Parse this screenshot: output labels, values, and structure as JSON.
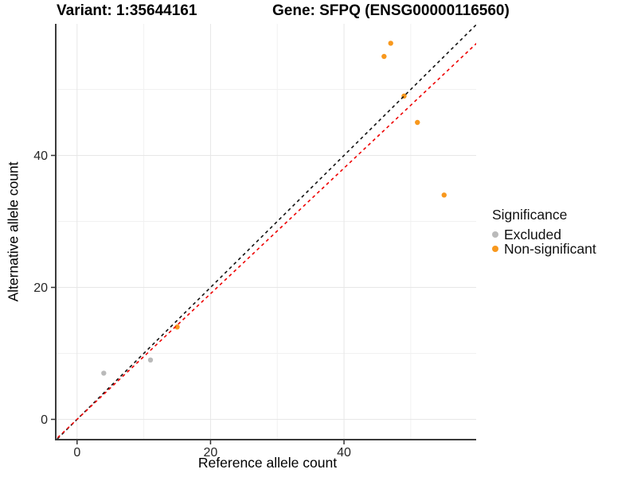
{
  "titles": {
    "variant": "Variant: 1:35644161",
    "gene": "Gene: SFPQ (ENSG00000116560)"
  },
  "axes": {
    "x_label": "Reference allele count",
    "y_label": "Alternative allele count",
    "x_ticks": [
      0,
      20,
      40
    ],
    "y_ticks": [
      0,
      20,
      40
    ],
    "x_minor_breaks": [
      10,
      30,
      50
    ],
    "y_minor_breaks": [
      10,
      30,
      50
    ]
  },
  "legend": {
    "title": "Significance",
    "items": [
      {
        "label": "Excluded",
        "color": "#BABABA"
      },
      {
        "label": "Non-significant",
        "color": "#F8981D"
      }
    ]
  },
  "chart_data": {
    "type": "scatter",
    "title": "Variant: 1:35644161 | Gene: SFPQ (ENSG00000116560)",
    "xlabel": "Reference allele count",
    "ylabel": "Alternative allele count",
    "xlim": [
      -3.2,
      59.8
    ],
    "ylim": [
      -3.1,
      59.9
    ],
    "grid": true,
    "legend_position": "right",
    "series": [
      {
        "name": "Excluded",
        "color": "#BABABA",
        "points": [
          {
            "x": 4,
            "y": 7
          },
          {
            "x": 11,
            "y": 9
          }
        ]
      },
      {
        "name": "Non-significant",
        "color": "#F8981D",
        "points": [
          {
            "x": 15,
            "y": 14
          },
          {
            "x": 46,
            "y": 55
          },
          {
            "x": 47,
            "y": 57
          },
          {
            "x": 49,
            "y": 49
          },
          {
            "x": 51,
            "y": 45
          },
          {
            "x": 55,
            "y": 34
          }
        ]
      }
    ],
    "reference_lines": [
      {
        "name": "identity-line",
        "slope": 1.0,
        "intercept": 0,
        "color": "#111111",
        "style": "dashed"
      },
      {
        "name": "expected-ratio-line",
        "slope": 0.952,
        "intercept": 0,
        "color": "#EE0000",
        "style": "dashed"
      }
    ]
  }
}
